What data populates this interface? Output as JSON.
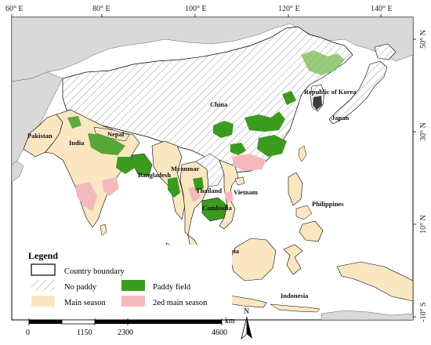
{
  "map": {
    "longitude_ticks": [
      "60° E",
      "80° E",
      "100° E",
      "120° E",
      "140° E"
    ],
    "latitude_ticks": [
      "50° N",
      "30° N",
      "10° N",
      "-10° S"
    ],
    "country_labels": [
      "China",
      "Republic of Korea",
      "Japan",
      "Pakistan",
      "India",
      "Nepal",
      "Bangladesh",
      "Myanmar",
      "Thailand",
      "Vietnam",
      "Cambodia",
      "Philippines",
      "Malaysia",
      "Indonesia"
    ],
    "colors": {
      "sea": "#ffffff",
      "land_other": "#d9d9d9",
      "main_season": "#fae7c2",
      "paddy_field": "#3a9b1f",
      "second_main_season": "#f3b9bd",
      "boundary": "#000000",
      "state_boundary": "#c8a27a"
    }
  },
  "legend": {
    "title": "Legend",
    "items": {
      "country_boundary": "Country boundary",
      "no_paddy": "No paddy",
      "paddy_field": "Paddy field",
      "main_season": "Main season",
      "second_main_season": "2ed main season"
    }
  },
  "scale_bar": {
    "unit": "km",
    "labels": [
      "0",
      "1150",
      "2300",
      "4600"
    ]
  },
  "north_arrow": {
    "label": "N"
  }
}
